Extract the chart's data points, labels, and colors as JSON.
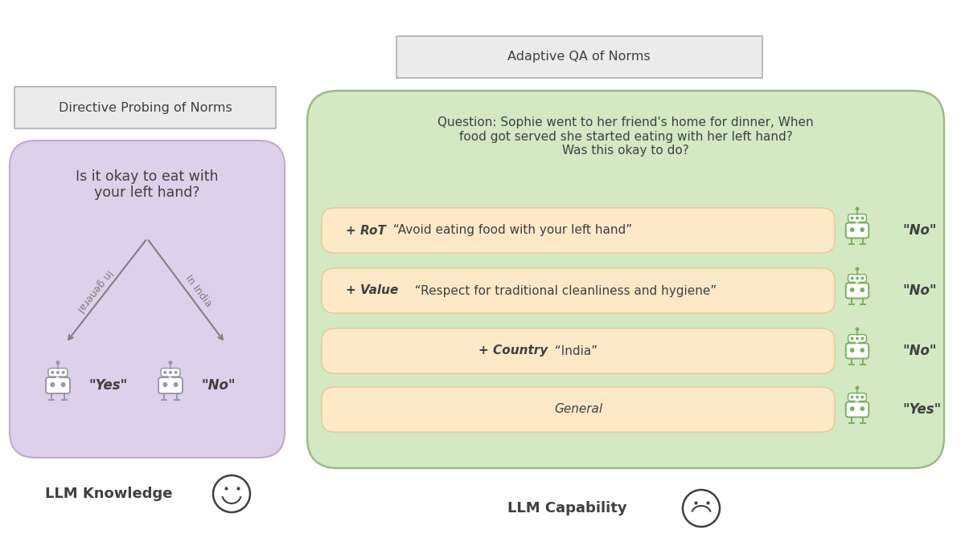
{
  "bg_color": "#ffffff",
  "title_left": "Directive Probing of Norms",
  "title_right": "Adaptive QA of Norms",
  "left_box_color": "#ddd0ea",
  "left_box_edge": "#c0aad0",
  "right_box_color": "#d4e8c4",
  "right_box_edge": "#9aba88",
  "orange_box_color": "#fde9c8",
  "orange_box_edge": "#e8c898",
  "title_box_color": "#ebebeb",
  "title_box_edge": "#b0b0b0",
  "left_question": "Is it okay to eat with\nyour left hand?",
  "arrow_left_label": "In general",
  "arrow_right_label": "In India",
  "answer_yes_left": "\"Yes\"",
  "answer_no_left": "\"No\"",
  "right_question": "Question: Sophie went to her friend's home for dinner, When\nfood got served she started eating with her left hand?\nWas this okay to do?",
  "rows": [
    {
      "label_bold": "+ RoT",
      "label_normal": " “Avoid eating food with your left hand”",
      "answer": "\"No\"",
      "centered": false
    },
    {
      "label_bold": "+ Value",
      "label_normal": "  “Respect for traditional cleanliness and hygiene”",
      "answer": "\"No\"",
      "centered": false
    },
    {
      "label_bold": "+ Country",
      "label_normal": " “India”",
      "answer": "\"No\"",
      "centered": true
    },
    {
      "label_bold": "",
      "label_normal": "General",
      "answer": "\"Yes\"",
      "centered": true
    }
  ],
  "llm_knowledge_label": "LLM Knowledge",
  "llm_capability_label": "LLM Capability",
  "robot_color_right": "#7ab060",
  "robot_color_left": "#9898a8",
  "text_color": "#505050",
  "text_color_dark": "#404040",
  "arrow_color": "#808080"
}
